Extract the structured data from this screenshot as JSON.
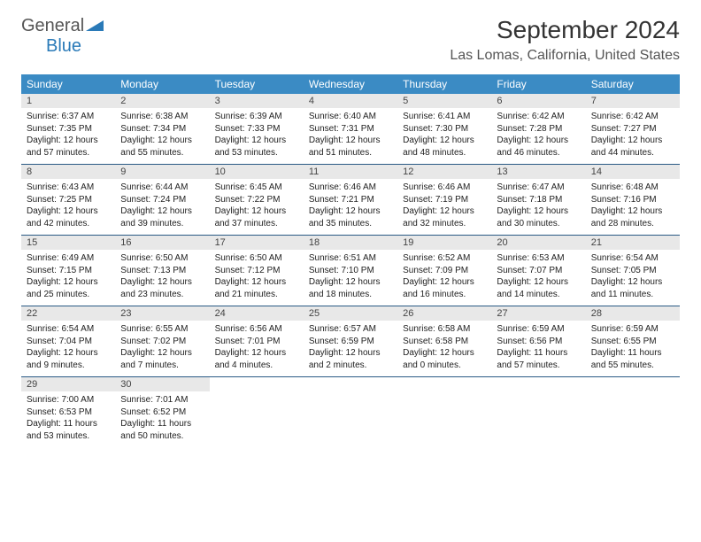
{
  "logo": {
    "text1": "General",
    "text2": "Blue"
  },
  "title": "September 2024",
  "location": "Las Lomas, California, United States",
  "colors": {
    "header_bg": "#3b8bc4",
    "header_text": "#ffffff",
    "daynum_bg": "#e8e8e8",
    "week_border": "#2a5a85",
    "logo_gray": "#555555",
    "logo_blue": "#2a7ab8"
  },
  "day_headers": [
    "Sunday",
    "Monday",
    "Tuesday",
    "Wednesday",
    "Thursday",
    "Friday",
    "Saturday"
  ],
  "weeks": [
    [
      {
        "n": "1",
        "sunrise": "6:37 AM",
        "sunset": "7:35 PM",
        "daylight": "12 hours and 57 minutes."
      },
      {
        "n": "2",
        "sunrise": "6:38 AM",
        "sunset": "7:34 PM",
        "daylight": "12 hours and 55 minutes."
      },
      {
        "n": "3",
        "sunrise": "6:39 AM",
        "sunset": "7:33 PM",
        "daylight": "12 hours and 53 minutes."
      },
      {
        "n": "4",
        "sunrise": "6:40 AM",
        "sunset": "7:31 PM",
        "daylight": "12 hours and 51 minutes."
      },
      {
        "n": "5",
        "sunrise": "6:41 AM",
        "sunset": "7:30 PM",
        "daylight": "12 hours and 48 minutes."
      },
      {
        "n": "6",
        "sunrise": "6:42 AM",
        "sunset": "7:28 PM",
        "daylight": "12 hours and 46 minutes."
      },
      {
        "n": "7",
        "sunrise": "6:42 AM",
        "sunset": "7:27 PM",
        "daylight": "12 hours and 44 minutes."
      }
    ],
    [
      {
        "n": "8",
        "sunrise": "6:43 AM",
        "sunset": "7:25 PM",
        "daylight": "12 hours and 42 minutes."
      },
      {
        "n": "9",
        "sunrise": "6:44 AM",
        "sunset": "7:24 PM",
        "daylight": "12 hours and 39 minutes."
      },
      {
        "n": "10",
        "sunrise": "6:45 AM",
        "sunset": "7:22 PM",
        "daylight": "12 hours and 37 minutes."
      },
      {
        "n": "11",
        "sunrise": "6:46 AM",
        "sunset": "7:21 PM",
        "daylight": "12 hours and 35 minutes."
      },
      {
        "n": "12",
        "sunrise": "6:46 AM",
        "sunset": "7:19 PM",
        "daylight": "12 hours and 32 minutes."
      },
      {
        "n": "13",
        "sunrise": "6:47 AM",
        "sunset": "7:18 PM",
        "daylight": "12 hours and 30 minutes."
      },
      {
        "n": "14",
        "sunrise": "6:48 AM",
        "sunset": "7:16 PM",
        "daylight": "12 hours and 28 minutes."
      }
    ],
    [
      {
        "n": "15",
        "sunrise": "6:49 AM",
        "sunset": "7:15 PM",
        "daylight": "12 hours and 25 minutes."
      },
      {
        "n": "16",
        "sunrise": "6:50 AM",
        "sunset": "7:13 PM",
        "daylight": "12 hours and 23 minutes."
      },
      {
        "n": "17",
        "sunrise": "6:50 AM",
        "sunset": "7:12 PM",
        "daylight": "12 hours and 21 minutes."
      },
      {
        "n": "18",
        "sunrise": "6:51 AM",
        "sunset": "7:10 PM",
        "daylight": "12 hours and 18 minutes."
      },
      {
        "n": "19",
        "sunrise": "6:52 AM",
        "sunset": "7:09 PM",
        "daylight": "12 hours and 16 minutes."
      },
      {
        "n": "20",
        "sunrise": "6:53 AM",
        "sunset": "7:07 PM",
        "daylight": "12 hours and 14 minutes."
      },
      {
        "n": "21",
        "sunrise": "6:54 AM",
        "sunset": "7:05 PM",
        "daylight": "12 hours and 11 minutes."
      }
    ],
    [
      {
        "n": "22",
        "sunrise": "6:54 AM",
        "sunset": "7:04 PM",
        "daylight": "12 hours and 9 minutes."
      },
      {
        "n": "23",
        "sunrise": "6:55 AM",
        "sunset": "7:02 PM",
        "daylight": "12 hours and 7 minutes."
      },
      {
        "n": "24",
        "sunrise": "6:56 AM",
        "sunset": "7:01 PM",
        "daylight": "12 hours and 4 minutes."
      },
      {
        "n": "25",
        "sunrise": "6:57 AM",
        "sunset": "6:59 PM",
        "daylight": "12 hours and 2 minutes."
      },
      {
        "n": "26",
        "sunrise": "6:58 AM",
        "sunset": "6:58 PM",
        "daylight": "12 hours and 0 minutes."
      },
      {
        "n": "27",
        "sunrise": "6:59 AM",
        "sunset": "6:56 PM",
        "daylight": "11 hours and 57 minutes."
      },
      {
        "n": "28",
        "sunrise": "6:59 AM",
        "sunset": "6:55 PM",
        "daylight": "11 hours and 55 minutes."
      }
    ],
    [
      {
        "n": "29",
        "sunrise": "7:00 AM",
        "sunset": "6:53 PM",
        "daylight": "11 hours and 53 minutes."
      },
      {
        "n": "30",
        "sunrise": "7:01 AM",
        "sunset": "6:52 PM",
        "daylight": "11 hours and 50 minutes."
      },
      null,
      null,
      null,
      null,
      null
    ]
  ],
  "labels": {
    "sunrise": "Sunrise:",
    "sunset": "Sunset:",
    "daylight": "Daylight:"
  }
}
